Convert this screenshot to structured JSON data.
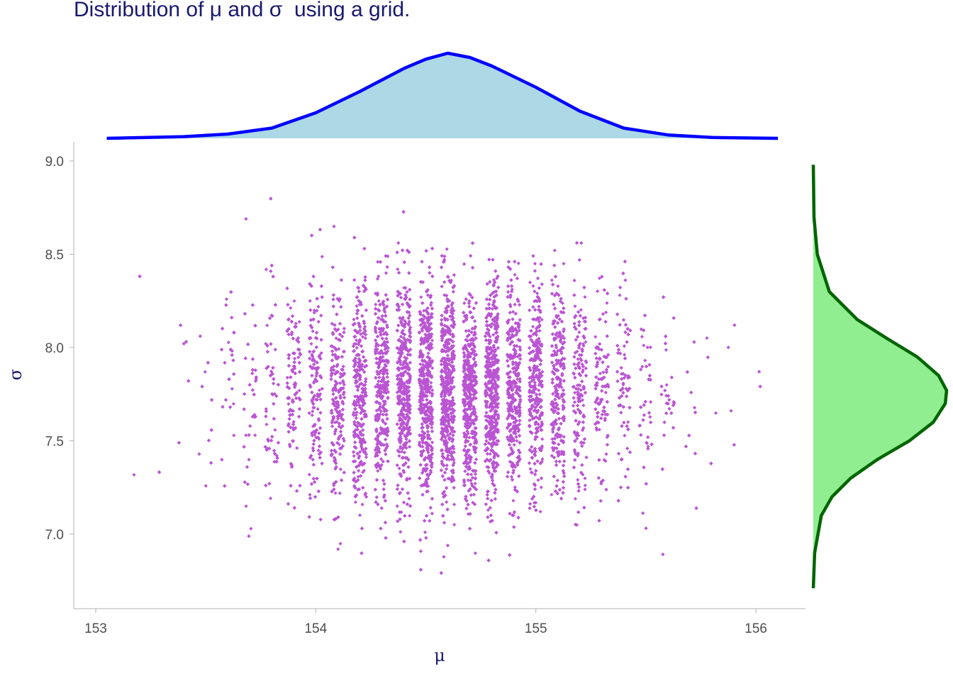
{
  "title": "Distribution of μ and σ  using a grid.",
  "chart_data": {
    "type": "scatter",
    "title": "Distribution of μ and σ  using a grid.",
    "xlabel": "μ",
    "ylabel": "σ",
    "xlim": [
      152.92,
      156.25
    ],
    "ylim": [
      6.62,
      9.1
    ],
    "x_ticks": [
      153,
      154,
      155,
      156
    ],
    "x_tick_labels": [
      "153",
      "154",
      "155",
      "156"
    ],
    "y_ticks": [
      7.0,
      7.5,
      8.0,
      8.5,
      9.0
    ],
    "y_tick_labels": [
      "7.0",
      "7.5",
      "8.0",
      "8.5",
      "9.0"
    ],
    "grid": false,
    "point_color": "#BA55D3",
    "x_grid_step": 0.1,
    "y_grid_step": 0.01,
    "x_range_of_points": [
      153.1,
      156.1
    ],
    "y_range_of_points": [
      6.71,
      8.98
    ],
    "mu_center": 154.6,
    "sigma_center": 7.77,
    "n_points_approx": 10000,
    "marginal_x": {
      "color_fill": "#ADD8E6",
      "color_line": "#0000FF",
      "x": [
        153.05,
        153.4,
        153.6,
        153.8,
        154.0,
        154.2,
        154.4,
        154.5,
        154.6,
        154.7,
        154.8,
        155.0,
        155.2,
        155.4,
        155.6,
        155.8,
        156.1
      ],
      "density": [
        0.0,
        0.02,
        0.05,
        0.12,
        0.3,
        0.55,
        0.82,
        0.93,
        1.0,
        0.95,
        0.85,
        0.6,
        0.32,
        0.12,
        0.04,
        0.01,
        0.0
      ]
    },
    "marginal_y": {
      "color_fill": "#90EE90",
      "color_line": "#006400",
      "y": [
        6.71,
        6.9,
        7.1,
        7.2,
        7.3,
        7.4,
        7.5,
        7.6,
        7.7,
        7.77,
        7.85,
        7.95,
        8.05,
        8.15,
        8.3,
        8.5,
        8.7,
        8.98
      ],
      "density": [
        0.0,
        0.01,
        0.06,
        0.14,
        0.28,
        0.48,
        0.72,
        0.9,
        0.99,
        1.0,
        0.94,
        0.78,
        0.55,
        0.33,
        0.12,
        0.03,
        0.005,
        0.0
      ]
    }
  }
}
